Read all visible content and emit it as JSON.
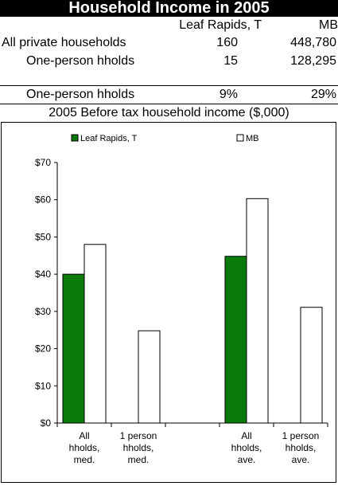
{
  "title": "Household Income in 2005",
  "table": {
    "headers": [
      "Leaf Rapids, T",
      "MB"
    ],
    "rows": [
      {
        "label": "All private households",
        "values": [
          "160",
          "448,780"
        ]
      },
      {
        "label": "One-person hholds",
        "values": [
          "15",
          "128,295"
        ]
      },
      {
        "label": "One-person hholds",
        "values": [
          "9%",
          "29%"
        ]
      }
    ]
  },
  "subtitle": "2005 Before tax household income ($,000)",
  "colors": {
    "leaf_rapids": "#0a7a0a",
    "mb": "#ffffff"
  },
  "chart_data": {
    "type": "bar",
    "categories": [
      "All hholds, med.",
      "1 person hholds, med.",
      "",
      "All hholds, ave.",
      "1 person hholds, ave."
    ],
    "category_lines": [
      [
        "All",
        "hholds,",
        "med."
      ],
      [
        "1 person",
        "hholds,",
        "med."
      ],
      [],
      [
        "All",
        "hholds,",
        "ave."
      ],
      [
        "1 person",
        "hholds,",
        "ave."
      ]
    ],
    "series": [
      {
        "name": "Leaf Rapids, T",
        "values": [
          40,
          null,
          null,
          44.8,
          null
        ]
      },
      {
        "name": "MB",
        "values": [
          48,
          24.8,
          null,
          60.3,
          31.1
        ]
      }
    ],
    "ylim": [
      0,
      70
    ],
    "yticks": [
      "$0",
      "$10",
      "$20",
      "$30",
      "$40",
      "$50",
      "$60",
      "$70"
    ],
    "legend": "top",
    "grid": false
  }
}
